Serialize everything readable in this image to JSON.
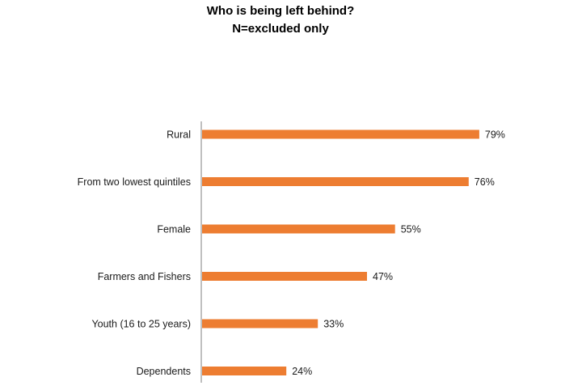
{
  "chart_data": {
    "type": "bar",
    "orientation": "horizontal",
    "title": "Who is being left behind?",
    "subtitle": "N=excluded only",
    "categories": [
      "Rural",
      "From two lowest quintiles",
      "Female",
      "Farmers and Fishers",
      "Youth (16 to 25 years)",
      "Dependents"
    ],
    "values": [
      79,
      76,
      55,
      47,
      33,
      24
    ],
    "value_labels": [
      "79%",
      "76%",
      "55%",
      "47%",
      "33%",
      "24%"
    ],
    "xlim": [
      0,
      100
    ],
    "unit": "%",
    "grid": false,
    "legend": "none",
    "bar_color": "#ED7D31",
    "axis_color": "#808080"
  }
}
